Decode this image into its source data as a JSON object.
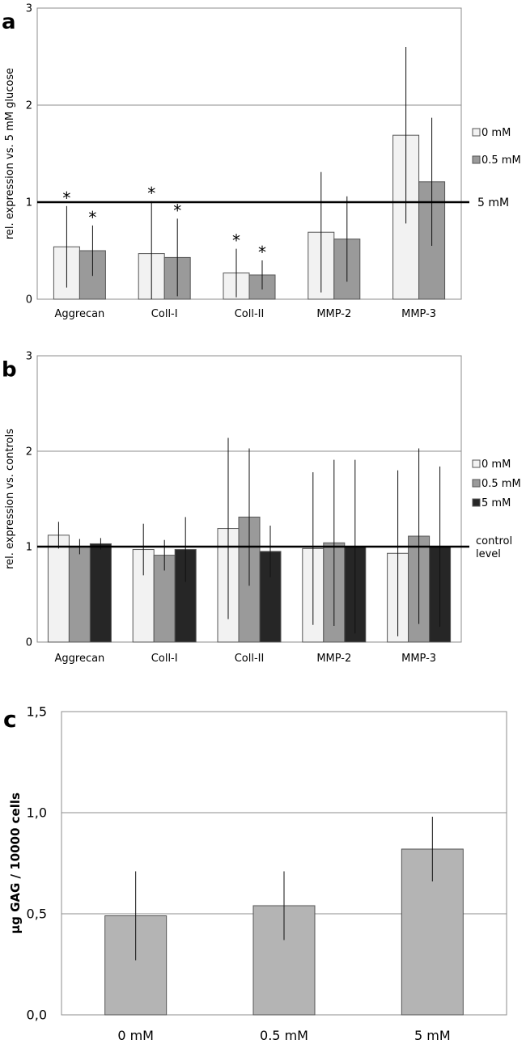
{
  "chart_data": [
    {
      "panel_label": "a",
      "type": "bar",
      "ylabel": "rel. expression vs. 5 mM glucose",
      "ylim": [
        0,
        3
      ],
      "yticks": [
        "0",
        "1",
        "2",
        "3"
      ],
      "grid": true,
      "legend_position": "right",
      "categories": [
        "Aggrecan",
        "Coll-I",
        "Coll-II",
        "MMP-2",
        "MMP-3"
      ],
      "series": [
        {
          "name": "0 mM",
          "color": "#f2f2f2",
          "values": [
            0.54,
            0.47,
            0.27,
            0.69,
            1.69
          ],
          "err": [
            0.42,
            0.54,
            0.25,
            0.62,
            0.91
          ]
        },
        {
          "name": "0.5 mM",
          "color": "#9a9a9a",
          "values": [
            0.5,
            0.43,
            0.25,
            0.62,
            1.21
          ],
          "err": [
            0.26,
            0.4,
            0.15,
            0.44,
            0.66
          ]
        }
      ],
      "significance": [
        {
          "category": 0,
          "series": 0,
          "label": "*"
        },
        {
          "category": 0,
          "series": 1,
          "label": "*"
        },
        {
          "category": 1,
          "series": 0,
          "label": "*"
        },
        {
          "category": 1,
          "series": 1,
          "label": "*"
        },
        {
          "category": 2,
          "series": 0,
          "label": "*"
        },
        {
          "category": 2,
          "series": 1,
          "label": "*"
        }
      ],
      "reference_line": {
        "value": 1,
        "label": "5 mM"
      }
    },
    {
      "panel_label": "b",
      "type": "bar",
      "ylabel": "rel. expression vs. controls",
      "ylim": [
        0,
        3
      ],
      "yticks": [
        "0",
        "1",
        "2",
        "3"
      ],
      "grid": true,
      "legend_position": "right",
      "categories": [
        "Aggrecan",
        "Coll-I",
        "Coll-II",
        "MMP-2",
        "MMP-3"
      ],
      "series": [
        {
          "name": "0 mM",
          "color": "#f2f2f2",
          "values": [
            1.12,
            0.97,
            1.19,
            0.98,
            0.93
          ],
          "err": [
            0.14,
            0.27,
            0.95,
            0.8,
            0.87
          ]
        },
        {
          "name": "0.5 mM",
          "color": "#9a9a9a",
          "values": [
            1.0,
            0.91,
            1.31,
            1.04,
            1.11
          ],
          "err": [
            0.08,
            0.16,
            0.72,
            0.87,
            0.92
          ]
        },
        {
          "name": "5 mM",
          "color": "#262626",
          "values": [
            1.03,
            0.97,
            0.95,
            1.0,
            1.0
          ],
          "err": [
            0.06,
            0.34,
            0.27,
            0.91,
            0.84
          ]
        }
      ],
      "reference_line": {
        "value": 1,
        "label_lines": [
          "control",
          "level"
        ]
      }
    },
    {
      "panel_label": "c",
      "type": "bar",
      "ylabel": "µg GAG / 10000 cells",
      "ylim": [
        0,
        1.5
      ],
      "yticks": [
        "0,0",
        "0,5",
        "1,0",
        "1,5"
      ],
      "grid": true,
      "categories": [
        "0 mM",
        "0.5 mM",
        "5 mM"
      ],
      "series": [
        {
          "color": "#b4b4b4",
          "values": [
            0.49,
            0.54,
            0.82
          ],
          "err": [
            0.22,
            0.17,
            0.16
          ]
        }
      ]
    }
  ]
}
